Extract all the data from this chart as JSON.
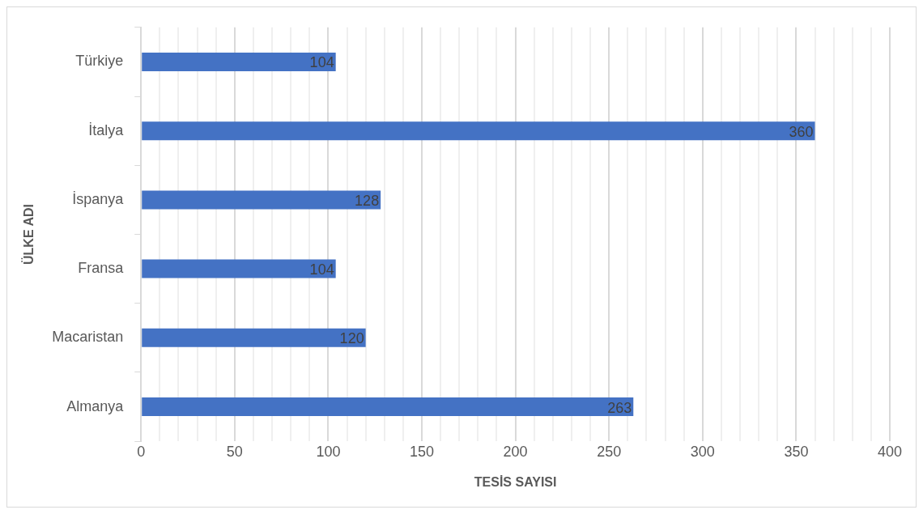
{
  "chart_data": {
    "type": "bar",
    "orientation": "horizontal",
    "xlabel": "TESİS SAYISI",
    "ylabel": "ÜLKE ADI",
    "categories": [
      "Türkiye",
      "İtalya",
      "İspanya",
      "Fransa",
      "Macaristan",
      "Almanya"
    ],
    "values": [
      104,
      360,
      128,
      104,
      120,
      263
    ],
    "color": "#4472c4",
    "data_labels": true,
    "grid": "x",
    "legend": false,
    "xlim": [
      0,
      400
    ],
    "xticks": [
      0,
      {
        "value": 10,
        "label": null
      },
      {
        "value": 20,
        "label": null
      },
      {
        "value": 30,
        "label": null
      },
      {
        "value": 40,
        "label": null
      },
      50,
      {
        "value": 60,
        "label": null
      },
      {
        "value": 70,
        "label": null
      },
      {
        "value": 80,
        "label": null
      },
      {
        "value": 90,
        "label": null
      },
      100,
      {
        "value": 110,
        "label": null
      },
      {
        "value": 120,
        "label": null
      },
      {
        "value": 130,
        "label": null
      },
      {
        "value": 140,
        "label": null
      },
      150,
      {
        "value": 160,
        "label": null
      },
      {
        "value": 170,
        "label": null
      },
      {
        "value": 180,
        "label": null
      },
      {
        "value": 190,
        "label": null
      },
      200,
      {
        "value": 210,
        "label": null
      },
      {
        "value": 220,
        "label": null
      },
      {
        "value": 230,
        "label": null
      },
      {
        "value": 240,
        "label": null
      },
      250,
      {
        "value": 260,
        "label": null
      },
      {
        "value": 270,
        "label": null
      },
      {
        "value": 280,
        "label": null
      },
      {
        "value": 290,
        "label": null
      },
      300,
      {
        "value": 310,
        "label": null
      },
      {
        "value": 320,
        "label": null
      },
      {
        "value": 330,
        "label": null
      },
      {
        "value": 340,
        "label": null
      },
      350,
      {
        "value": 360,
        "label": null
      },
      {
        "value": 370,
        "label": null
      },
      {
        "value": 380,
        "label": null
      },
      {
        "value": 390,
        "label": null
      },
      400
    ]
  }
}
